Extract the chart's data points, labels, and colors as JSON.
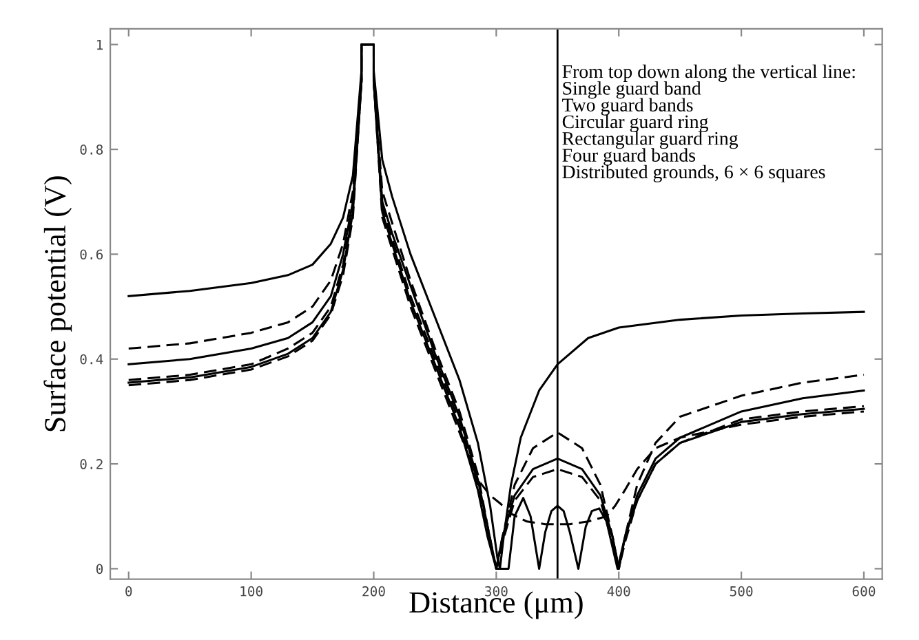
{
  "chart_data": {
    "type": "line",
    "xlabel": "Distance (μm)",
    "ylabel": "Surface potential (V)",
    "xlim": [
      -15,
      615
    ],
    "ylim": [
      -0.02,
      1.03
    ],
    "xticks": [
      0,
      100,
      200,
      300,
      400,
      500,
      600
    ],
    "yticks": [
      0,
      0.2,
      0.4,
      0.6,
      0.8,
      1
    ],
    "grid": false,
    "legend": false,
    "marker": "none",
    "ref_lines": [
      {
        "axis": "x",
        "value": 350,
        "color": "#000000",
        "line_style": "solid"
      }
    ],
    "annotations": [
      "From top down along the vertical line:\nSingle guard band\nTwo guard bands\nCircular guard ring\nRectangular guard ring\nFour guard bands\nDistributed grounds, 6 × 6 squares"
    ],
    "series": [
      {
        "color": "#000000",
        "line_style": "solid",
        "x": [
          0,
          50,
          100,
          130,
          150,
          165,
          175,
          183,
          190,
          190,
          200,
          200,
          207,
          215,
          230,
          250,
          270,
          285,
          295,
          301,
          303,
          306,
          312,
          320,
          335,
          350,
          375,
          400,
          450,
          500,
          550,
          600
        ],
        "values": [
          0.52,
          0.53,
          0.545,
          0.56,
          0.58,
          0.62,
          0.67,
          0.75,
          0.95,
          1,
          1,
          0.95,
          0.78,
          0.71,
          0.6,
          0.48,
          0.36,
          0.24,
          0.12,
          0.02,
          0,
          0.06,
          0.16,
          0.25,
          0.34,
          0.39,
          0.44,
          0.46,
          0.475,
          0.483,
          0.487,
          0.49
        ]
      },
      {
        "color": "#000000",
        "line_style": "dashed",
        "x": [
          0,
          50,
          100,
          130,
          150,
          165,
          175,
          183,
          190,
          190,
          200,
          200,
          207,
          215,
          230,
          250,
          270,
          285,
          293,
          300,
          305,
          315,
          330,
          350,
          370,
          385,
          395,
          400,
          405,
          415,
          430,
          450,
          500,
          550,
          600
        ],
        "values": [
          0.42,
          0.43,
          0.45,
          0.47,
          0.5,
          0.55,
          0.62,
          0.72,
          0.93,
          1,
          1,
          0.93,
          0.72,
          0.66,
          0.55,
          0.42,
          0.3,
          0.18,
          0.08,
          0,
          0.06,
          0.16,
          0.23,
          0.26,
          0.23,
          0.16,
          0.06,
          0,
          0.06,
          0.16,
          0.24,
          0.29,
          0.33,
          0.355,
          0.37
        ]
      },
      {
        "color": "#000000",
        "line_style": "solid",
        "x": [
          0,
          50,
          100,
          130,
          150,
          165,
          175,
          183,
          190,
          190,
          200,
          200,
          207,
          215,
          230,
          250,
          270,
          285,
          293,
          300,
          305,
          315,
          330,
          350,
          370,
          385,
          395,
          400,
          405,
          415,
          430,
          450,
          500,
          550,
          600
        ],
        "values": [
          0.39,
          0.4,
          0.42,
          0.44,
          0.47,
          0.52,
          0.6,
          0.7,
          0.93,
          1,
          1,
          0.93,
          0.7,
          0.64,
          0.54,
          0.41,
          0.29,
          0.17,
          0.08,
          0,
          0.06,
          0.14,
          0.19,
          0.21,
          0.19,
          0.14,
          0.06,
          0,
          0.06,
          0.14,
          0.21,
          0.25,
          0.3,
          0.325,
          0.34
        ]
      },
      {
        "color": "#000000",
        "line_style": "dashed",
        "x": [
          0,
          50,
          100,
          130,
          150,
          165,
          175,
          183,
          190,
          190,
          200,
          200,
          207,
          215,
          230,
          250,
          270,
          285,
          293,
          300,
          305,
          315,
          330,
          350,
          370,
          385,
          395,
          400,
          405,
          415,
          430,
          450,
          500,
          550,
          600
        ],
        "values": [
          0.36,
          0.37,
          0.39,
          0.42,
          0.45,
          0.5,
          0.58,
          0.69,
          0.93,
          1,
          1,
          0.93,
          0.69,
          0.63,
          0.52,
          0.4,
          0.28,
          0.16,
          0.07,
          0,
          0.05,
          0.13,
          0.175,
          0.19,
          0.175,
          0.13,
          0.05,
          0,
          0.05,
          0.13,
          0.2,
          0.24,
          0.285,
          0.3,
          0.31
        ]
      },
      {
        "color": "#000000",
        "line_style": "solid",
        "x": [
          0,
          50,
          100,
          130,
          150,
          165,
          175,
          183,
          190,
          190,
          200,
          200,
          207,
          215,
          230,
          250,
          270,
          285,
          293,
          300,
          304,
          310,
          315,
          322,
          328,
          335,
          340,
          345,
          350,
          355,
          360,
          367,
          373,
          378,
          384,
          390,
          399,
          405,
          415,
          430,
          450,
          500,
          550,
          600
        ],
        "values": [
          0.355,
          0.365,
          0.385,
          0.41,
          0.44,
          0.49,
          0.57,
          0.68,
          0.93,
          1,
          1,
          0.93,
          0.68,
          0.62,
          0.51,
          0.39,
          0.27,
          0.15,
          0.06,
          0,
          0,
          0,
          0.1,
          0.135,
          0.1,
          0,
          0.07,
          0.11,
          0.12,
          0.11,
          0.07,
          0,
          0.08,
          0.11,
          0.115,
          0.09,
          0,
          0.06,
          0.13,
          0.2,
          0.24,
          0.28,
          0.295,
          0.305
        ]
      },
      {
        "color": "#000000",
        "line_style": "dashed",
        "x": [
          0,
          50,
          100,
          130,
          150,
          165,
          175,
          183,
          190,
          190,
          200,
          200,
          207,
          215,
          230,
          250,
          270,
          285,
          295,
          303,
          312,
          325,
          340,
          350,
          360,
          375,
          390,
          397,
          405,
          415,
          430,
          450,
          500,
          550,
          600
        ],
        "values": [
          0.35,
          0.36,
          0.38,
          0.405,
          0.435,
          0.485,
          0.56,
          0.67,
          0.93,
          1,
          1,
          0.93,
          0.67,
          0.61,
          0.5,
          0.38,
          0.26,
          0.17,
          0.14,
          0.125,
          0.105,
          0.09,
          0.085,
          0.085,
          0.085,
          0.09,
          0.1,
          0.12,
          0.15,
          0.19,
          0.23,
          0.25,
          0.275,
          0.29,
          0.3
        ]
      }
    ]
  }
}
